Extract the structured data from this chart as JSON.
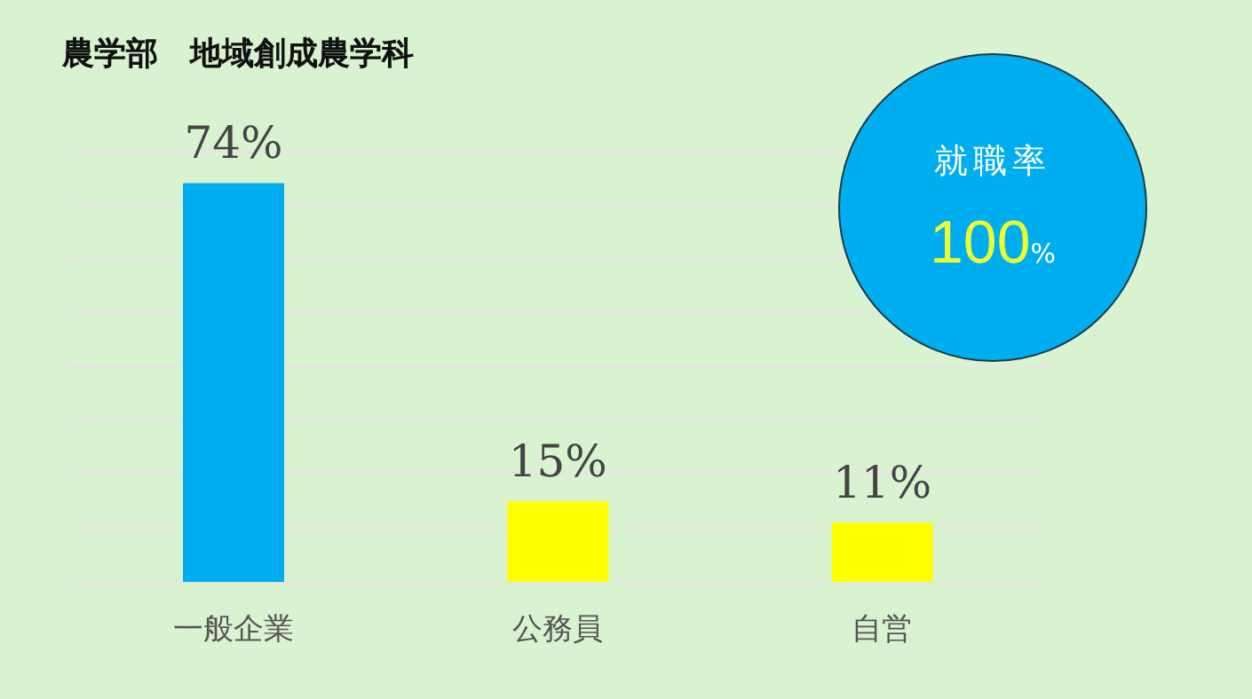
{
  "chart_data": {
    "type": "bar",
    "title": "農学部　地域創成農学科",
    "categories": [
      "一般企業",
      "公務員",
      "自営"
    ],
    "values": [
      74,
      15,
      11
    ],
    "value_labels": [
      "74%",
      "15%",
      "11%"
    ],
    "colors": [
      "#00aeef",
      "#ffff00",
      "#ffff00"
    ],
    "ylim": [
      0,
      80
    ],
    "yticks": [
      {
        "value": 0,
        "label": null
      },
      {
        "value": 10,
        "label": null
      },
      {
        "value": 20,
        "label": null
      },
      {
        "value": 30,
        "label": null
      },
      {
        "value": 40,
        "label": null
      },
      {
        "value": 50,
        "label": null
      },
      {
        "value": 60,
        "label": null
      },
      {
        "value": 70,
        "label": null
      },
      {
        "value": 80,
        "label": null
      }
    ],
    "tick_labels": "x",
    "grid": "y",
    "annotations": [
      "就職率",
      "100%"
    ]
  }
}
